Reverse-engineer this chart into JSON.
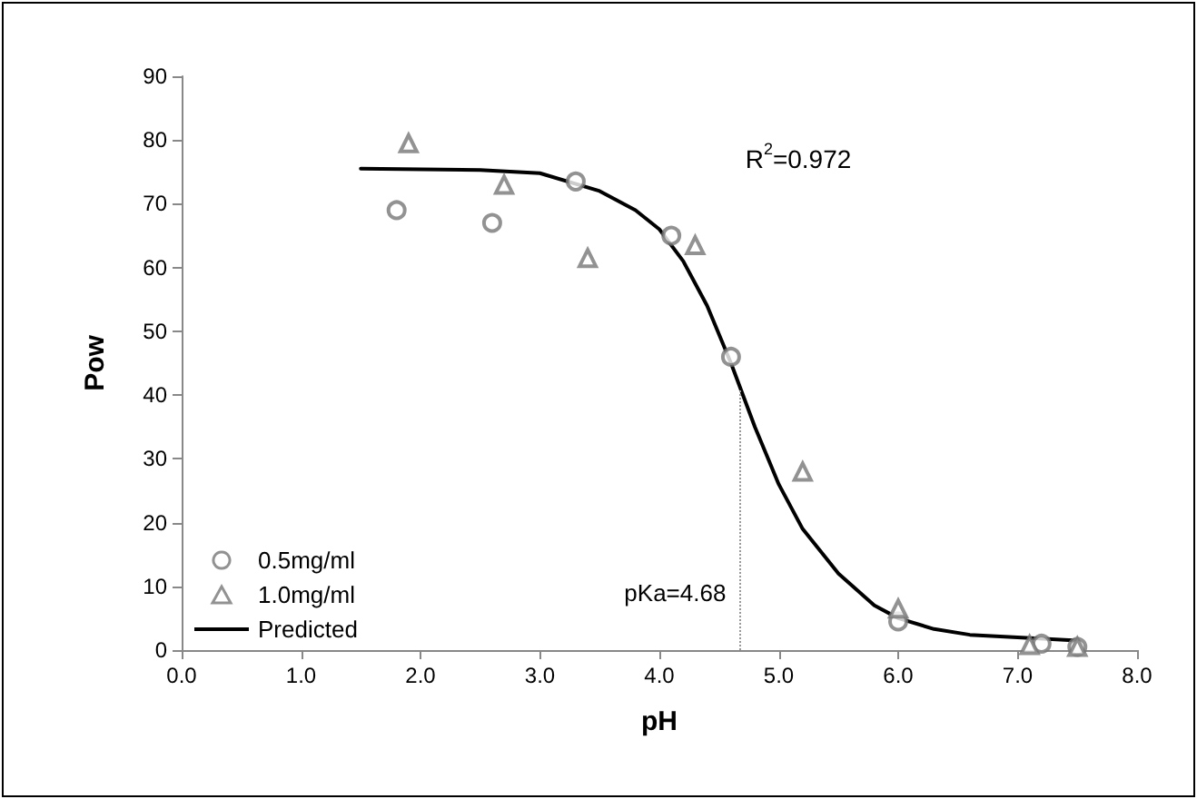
{
  "chart_data": {
    "type": "scatter",
    "xlabel": "pH",
    "ylabel": "Pow",
    "xlim": [
      0,
      8
    ],
    "ylim": [
      0,
      90
    ],
    "xticks": [
      {
        "value": 0,
        "label": "0.0"
      },
      {
        "value": 1,
        "label": "1.0"
      },
      {
        "value": 2,
        "label": "2.0"
      },
      {
        "value": 3,
        "label": "3.0"
      },
      {
        "value": 4,
        "label": "4.0"
      },
      {
        "value": 5,
        "label": "5.0"
      },
      {
        "value": 6,
        "label": "6.0"
      },
      {
        "value": 7,
        "label": "7.0"
      },
      {
        "value": 8,
        "label": "8.0"
      }
    ],
    "yticks": [
      0,
      10,
      20,
      30,
      40,
      50,
      60,
      70,
      80,
      90
    ],
    "grid": false,
    "legend": "bottom left",
    "annotations": [
      "R$^{2}$=0.972"
    ],
    "ref_lines": [
      {
        "axis": "x",
        "value": 4.68,
        "label": "pKa=4.68",
        "line_style": "dotted",
        "color": "#999999"
      }
    ],
    "series": [
      {
        "name": "0.5mg/ml",
        "marker": "circle",
        "color": "#777777",
        "x": [
          1.8,
          2.6,
          3.3,
          4.1,
          4.6,
          6.0,
          7.2,
          7.5
        ],
        "values": [
          69,
          67,
          73.5,
          65,
          46,
          4.5,
          1,
          0.5
        ]
      },
      {
        "name": "1.0mg/ml",
        "marker": "triangle",
        "color": "#777777",
        "x": [
          1.9,
          2.7,
          3.4,
          4.3,
          5.2,
          6.0,
          7.1,
          7.5
        ],
        "values": [
          79.5,
          73,
          61.5,
          63.5,
          28,
          6.5,
          0.8,
          0.5
        ]
      },
      {
        "name": "Predicted",
        "type": "line",
        "marker": "none",
        "line_style": "solid",
        "color": "#000000",
        "x": [
          1.5,
          2.5,
          3.0,
          3.5,
          3.8,
          4.0,
          4.2,
          4.4,
          4.6,
          4.8,
          5.0,
          5.2,
          5.5,
          5.8,
          6.0,
          6.3,
          6.6,
          7.0,
          7.5
        ],
        "values": [
          75.5,
          75.3,
          74.8,
          72,
          69,
          66,
          61,
          54,
          45,
          35,
          26,
          19,
          12,
          7,
          5,
          3.3,
          2.4,
          2,
          1.5
        ]
      }
    ]
  }
}
